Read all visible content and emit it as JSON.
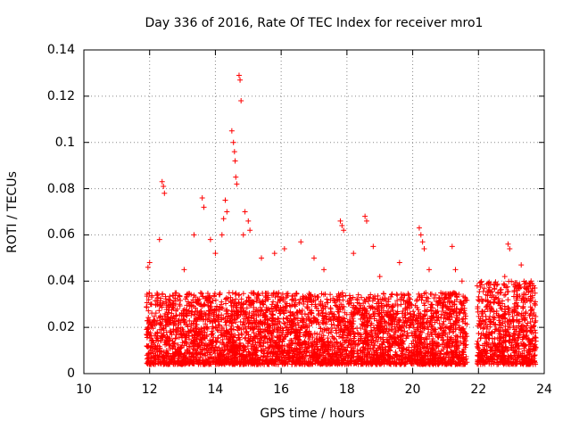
{
  "chart_data": {
    "type": "scatter",
    "title": "Day 336 of 2016, Rate Of TEC Index for receiver mro1",
    "xlabel": "GPS time / hours",
    "ylabel": "ROTI / TECUs",
    "xlim": [
      10,
      24
    ],
    "ylim": [
      0,
      0.14
    ],
    "grid": true,
    "marker": "+",
    "series_color": "#ff0000",
    "xticks": [
      "10",
      "12",
      "14",
      "16",
      "18",
      "20",
      "22",
      "24"
    ],
    "yticks": [
      "0",
      "0.02",
      "0.04",
      "0.06",
      "0.08",
      "0.1",
      "0.12",
      "0.14"
    ],
    "data_coverage": [
      {
        "x_start": 11.9,
        "x_end": 21.65,
        "typical_y": [
          0.004,
          0.035
        ]
      },
      {
        "x_start": 21.95,
        "x_end": 23.75,
        "typical_y": [
          0.004,
          0.04
        ]
      }
    ],
    "series": [
      {
        "name": "ROTI",
        "points": [
          [
            11.95,
            0.046
          ],
          [
            12.0,
            0.048
          ],
          [
            12.05,
            0.03
          ],
          [
            12.3,
            0.058
          ],
          [
            12.38,
            0.083
          ],
          [
            12.42,
            0.081
          ],
          [
            12.45,
            0.078
          ],
          [
            12.7,
            0.03
          ],
          [
            13.05,
            0.045
          ],
          [
            13.35,
            0.06
          ],
          [
            13.6,
            0.076
          ],
          [
            13.65,
            0.072
          ],
          [
            13.85,
            0.058
          ],
          [
            14.0,
            0.052
          ],
          [
            14.2,
            0.06
          ],
          [
            14.25,
            0.067
          ],
          [
            14.3,
            0.075
          ],
          [
            14.35,
            0.07
          ],
          [
            14.5,
            0.105
          ],
          [
            14.55,
            0.1
          ],
          [
            14.58,
            0.096
          ],
          [
            14.6,
            0.092
          ],
          [
            14.62,
            0.085
          ],
          [
            14.65,
            0.082
          ],
          [
            14.72,
            0.129
          ],
          [
            14.75,
            0.127
          ],
          [
            14.78,
            0.118
          ],
          [
            14.85,
            0.06
          ],
          [
            14.9,
            0.07
          ],
          [
            15.0,
            0.066
          ],
          [
            15.05,
            0.062
          ],
          [
            15.4,
            0.05
          ],
          [
            15.8,
            0.052
          ],
          [
            16.1,
            0.054
          ],
          [
            16.6,
            0.057
          ],
          [
            17.0,
            0.05
          ],
          [
            17.3,
            0.045
          ],
          [
            17.8,
            0.066
          ],
          [
            17.85,
            0.064
          ],
          [
            17.9,
            0.062
          ],
          [
            18.2,
            0.052
          ],
          [
            18.55,
            0.068
          ],
          [
            18.6,
            0.066
          ],
          [
            18.8,
            0.055
          ],
          [
            19.0,
            0.042
          ],
          [
            19.6,
            0.048
          ],
          [
            20.2,
            0.063
          ],
          [
            20.25,
            0.06
          ],
          [
            20.3,
            0.057
          ],
          [
            20.35,
            0.054
          ],
          [
            20.5,
            0.045
          ],
          [
            21.0,
            0.033
          ],
          [
            21.2,
            0.055
          ],
          [
            21.3,
            0.045
          ],
          [
            21.5,
            0.04
          ],
          [
            22.2,
            0.022
          ],
          [
            22.5,
            0.032
          ],
          [
            22.8,
            0.042
          ],
          [
            22.9,
            0.056
          ],
          [
            22.95,
            0.054
          ],
          [
            23.3,
            0.047
          ],
          [
            23.6,
            0.04
          ]
        ]
      }
    ]
  }
}
